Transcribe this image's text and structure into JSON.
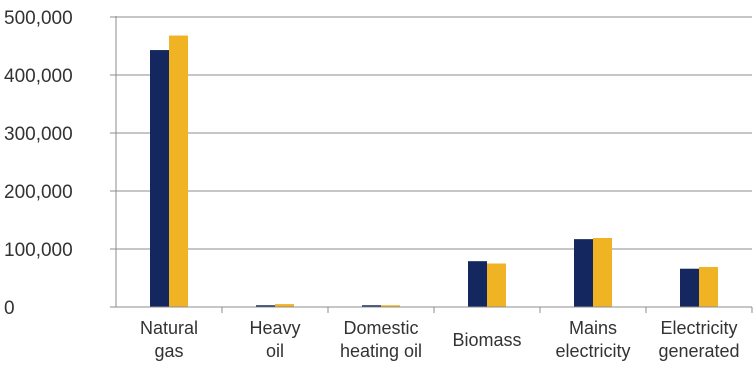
{
  "chart_data": {
    "type": "bar",
    "title": "",
    "xlabel": "",
    "ylabel": "",
    "ylim": [
      0,
      500000
    ],
    "yticks": [
      0,
      100000,
      200000,
      300000,
      400000,
      500000
    ],
    "ytick_labels": [
      "0",
      "100,000",
      "200,000",
      "300,000",
      "400,000",
      "500,000"
    ],
    "grid": true,
    "legend": "none",
    "categories": [
      [
        "Natural",
        "gas"
      ],
      [
        "Heavy",
        "oil"
      ],
      [
        "Domestic",
        "heating oil"
      ],
      [
        "Biomass"
      ],
      [
        "Mains",
        "electricity"
      ],
      [
        "Electricity",
        "generated"
      ]
    ],
    "series": [
      {
        "color": "#14285f",
        "values": [
          443000,
          3000,
          3000,
          79000,
          117000,
          66000
        ]
      },
      {
        "color": "#f0b323",
        "values": [
          468000,
          5000,
          3000,
          75000,
          119000,
          69000
        ]
      }
    ]
  }
}
